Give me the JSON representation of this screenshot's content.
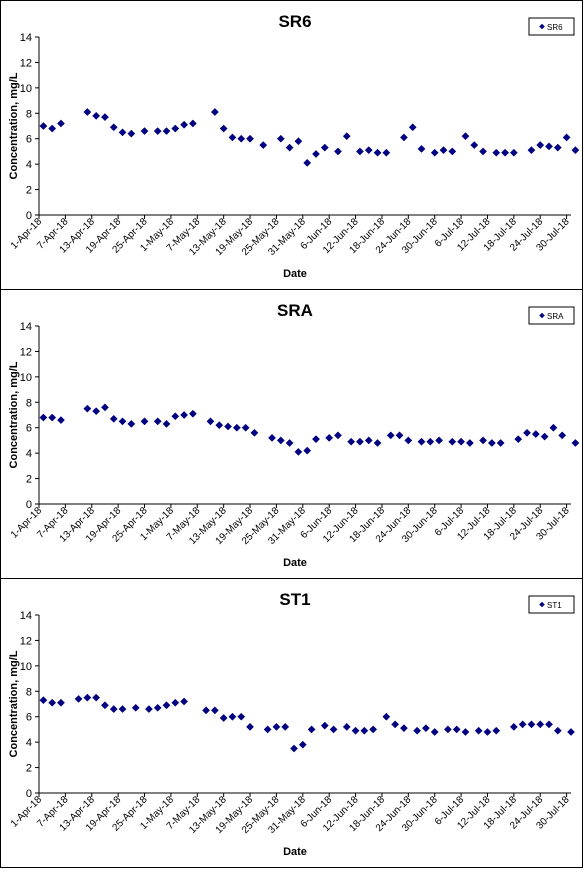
{
  "chart_data": [
    {
      "type": "scatter",
      "title": "SR6",
      "xlabel": "Date",
      "ylabel": "Concentration, mg/L",
      "ylim": [
        0,
        14
      ],
      "yticks": [
        "0",
        "2",
        "4",
        "6",
        "8",
        "10",
        "12",
        "14"
      ],
      "xticks": [
        "1-Apr-18",
        "7-Apr-18",
        "13-Apr-18",
        "19-Apr-18",
        "25-Apr-18",
        "1-May-18",
        "7-May-18",
        "13-May-18",
        "19-May-18",
        "25-May-18",
        "31-May-18",
        "6-Jun-18",
        "12-Jun-18",
        "18-Jun-18",
        "24-Jun-18",
        "30-Jun-18",
        "6-Jul-18",
        "12-Jul-18",
        "18-Jul-18",
        "24-Jul-18",
        "30-Jul-18"
      ],
      "xlim": [
        "2018-04-01",
        "2018-07-31"
      ],
      "legend": "top-right",
      "grid": false,
      "series": [
        {
          "name": "SR6",
          "color": "#000080",
          "points": [
            [
              "2018-04-02",
              7.0
            ],
            [
              "2018-04-04",
              6.8
            ],
            [
              "2018-04-06",
              7.2
            ],
            [
              "2018-04-12",
              8.1
            ],
            [
              "2018-04-14",
              7.8
            ],
            [
              "2018-04-16",
              7.7
            ],
            [
              "2018-04-18",
              6.9
            ],
            [
              "2018-04-20",
              6.5
            ],
            [
              "2018-04-22",
              6.4
            ],
            [
              "2018-04-25",
              6.6
            ],
            [
              "2018-04-28",
              6.6
            ],
            [
              "2018-04-30",
              6.6
            ],
            [
              "2018-05-02",
              6.8
            ],
            [
              "2018-05-04",
              7.1
            ],
            [
              "2018-05-06",
              7.2
            ],
            [
              "2018-05-11",
              8.1
            ],
            [
              "2018-05-13",
              6.8
            ],
            [
              "2018-05-15",
              6.1
            ],
            [
              "2018-05-17",
              6.0
            ],
            [
              "2018-05-19",
              6.0
            ],
            [
              "2018-05-22",
              5.5
            ],
            [
              "2018-05-26",
              6.0
            ],
            [
              "2018-05-28",
              5.3
            ],
            [
              "2018-05-30",
              5.8
            ],
            [
              "2018-06-01",
              4.1
            ],
            [
              "2018-06-03",
              4.8
            ],
            [
              "2018-06-05",
              5.3
            ],
            [
              "2018-06-08",
              5.0
            ],
            [
              "2018-06-10",
              6.2
            ],
            [
              "2018-06-13",
              5.0
            ],
            [
              "2018-06-15",
              5.1
            ],
            [
              "2018-06-17",
              4.9
            ],
            [
              "2018-06-19",
              4.9
            ],
            [
              "2018-06-23",
              6.1
            ],
            [
              "2018-06-25",
              6.9
            ],
            [
              "2018-06-27",
              5.2
            ],
            [
              "2018-06-30",
              4.9
            ],
            [
              "2018-07-02",
              5.1
            ],
            [
              "2018-07-04",
              5.0
            ],
            [
              "2018-07-07",
              6.2
            ],
            [
              "2018-07-09",
              5.5
            ],
            [
              "2018-07-11",
              5.0
            ],
            [
              "2018-07-14",
              4.9
            ],
            [
              "2018-07-16",
              4.9
            ],
            [
              "2018-07-18",
              4.9
            ],
            [
              "2018-07-22",
              5.1
            ],
            [
              "2018-07-24",
              5.5
            ],
            [
              "2018-07-26",
              5.4
            ],
            [
              "2018-07-28",
              5.3
            ],
            [
              "2018-07-30",
              6.1
            ],
            [
              "2018-08-01",
              5.1
            ],
            [
              "2018-08-04",
              5.0
            ]
          ]
        }
      ]
    },
    {
      "type": "scatter",
      "title": "SRA",
      "xlabel": "Date",
      "ylabel": "Concentration, mg/L",
      "ylim": [
        0,
        14
      ],
      "yticks": [
        "0",
        "2",
        "4",
        "6",
        "8",
        "10",
        "12",
        "14"
      ],
      "xticks": [
        "1-Apr-18",
        "7-Apr-18",
        "13-Apr-18",
        "19-Apr-18",
        "25-Apr-18",
        "1-May-18",
        "7-May-18",
        "13-May-18",
        "19-May-18",
        "25-May-18",
        "31-May-18",
        "6-Jun-18",
        "12-Jun-18",
        "18-Jun-18",
        "24-Jun-18",
        "30-Jun-18",
        "6-Jul-18",
        "12-Jul-18",
        "18-Jul-18",
        "24-Jul-18",
        "30-Jul-18"
      ],
      "xlim": [
        "2018-04-01",
        "2018-07-31"
      ],
      "legend": "top-right",
      "grid": false,
      "series": [
        {
          "name": "SRA",
          "color": "#000080",
          "points": [
            [
              "2018-04-02",
              6.8
            ],
            [
              "2018-04-04",
              6.8
            ],
            [
              "2018-04-06",
              6.6
            ],
            [
              "2018-04-12",
              7.5
            ],
            [
              "2018-04-14",
              7.3
            ],
            [
              "2018-04-16",
              7.6
            ],
            [
              "2018-04-18",
              6.7
            ],
            [
              "2018-04-20",
              6.5
            ],
            [
              "2018-04-22",
              6.3
            ],
            [
              "2018-04-25",
              6.5
            ],
            [
              "2018-04-28",
              6.5
            ],
            [
              "2018-04-30",
              6.3
            ],
            [
              "2018-05-02",
              6.9
            ],
            [
              "2018-05-04",
              7.0
            ],
            [
              "2018-05-06",
              7.1
            ],
            [
              "2018-05-10",
              6.5
            ],
            [
              "2018-05-12",
              6.2
            ],
            [
              "2018-05-14",
              6.1
            ],
            [
              "2018-05-16",
              6.0
            ],
            [
              "2018-05-18",
              6.0
            ],
            [
              "2018-05-20",
              5.6
            ],
            [
              "2018-05-24",
              5.2
            ],
            [
              "2018-05-26",
              5.0
            ],
            [
              "2018-05-28",
              4.8
            ],
            [
              "2018-05-30",
              4.1
            ],
            [
              "2018-06-01",
              4.2
            ],
            [
              "2018-06-03",
              5.1
            ],
            [
              "2018-06-06",
              5.2
            ],
            [
              "2018-06-08",
              5.4
            ],
            [
              "2018-06-11",
              4.9
            ],
            [
              "2018-06-13",
              4.9
            ],
            [
              "2018-06-15",
              5.0
            ],
            [
              "2018-06-17",
              4.8
            ],
            [
              "2018-06-20",
              5.4
            ],
            [
              "2018-06-22",
              5.4
            ],
            [
              "2018-06-24",
              5.0
            ],
            [
              "2018-06-27",
              4.9
            ],
            [
              "2018-06-29",
              4.9
            ],
            [
              "2018-07-01",
              5.0
            ],
            [
              "2018-07-04",
              4.9
            ],
            [
              "2018-07-06",
              4.9
            ],
            [
              "2018-07-08",
              4.8
            ],
            [
              "2018-07-11",
              5.0
            ],
            [
              "2018-07-13",
              4.8
            ],
            [
              "2018-07-15",
              4.8
            ],
            [
              "2018-07-19",
              5.1
            ],
            [
              "2018-07-21",
              5.6
            ],
            [
              "2018-07-23",
              5.5
            ],
            [
              "2018-07-25",
              5.3
            ],
            [
              "2018-07-27",
              6.0
            ],
            [
              "2018-07-29",
              5.4
            ],
            [
              "2018-08-01",
              4.8
            ]
          ]
        }
      ]
    },
    {
      "type": "scatter",
      "title": "ST1",
      "xlabel": "Date",
      "ylabel": "Concentration, mg/L",
      "ylim": [
        0,
        14
      ],
      "yticks": [
        "0",
        "2",
        "4",
        "6",
        "8",
        "10",
        "12",
        "14"
      ],
      "xticks": [
        "1-Apr-18",
        "7-Apr-18",
        "13-Apr-18",
        "19-Apr-18",
        "25-Apr-18",
        "1-May-18",
        "7-May-18",
        "13-May-18",
        "19-May-18",
        "25-May-18",
        "31-May-18",
        "6-Jun-18",
        "12-Jun-18",
        "18-Jun-18",
        "24-Jun-18",
        "30-Jun-18",
        "6-Jul-18",
        "12-Jul-18",
        "18-Jul-18",
        "24-Jul-18",
        "30-Jul-18"
      ],
      "xlim": [
        "2018-04-01",
        "2018-07-31"
      ],
      "legend": "top-right",
      "grid": false,
      "series": [
        {
          "name": "ST1",
          "color": "#000080",
          "points": [
            [
              "2018-04-02",
              7.3
            ],
            [
              "2018-04-04",
              7.1
            ],
            [
              "2018-04-06",
              7.1
            ],
            [
              "2018-04-10",
              7.4
            ],
            [
              "2018-04-12",
              7.5
            ],
            [
              "2018-04-14",
              7.5
            ],
            [
              "2018-04-16",
              6.9
            ],
            [
              "2018-04-18",
              6.6
            ],
            [
              "2018-04-20",
              6.6
            ],
            [
              "2018-04-23",
              6.7
            ],
            [
              "2018-04-26",
              6.6
            ],
            [
              "2018-04-28",
              6.7
            ],
            [
              "2018-04-30",
              6.9
            ],
            [
              "2018-05-02",
              7.1
            ],
            [
              "2018-05-04",
              7.2
            ],
            [
              "2018-05-09",
              6.5
            ],
            [
              "2018-05-11",
              6.5
            ],
            [
              "2018-05-13",
              5.9
            ],
            [
              "2018-05-15",
              6.0
            ],
            [
              "2018-05-17",
              6.0
            ],
            [
              "2018-05-19",
              5.2
            ],
            [
              "2018-05-23",
              5.0
            ],
            [
              "2018-05-25",
              5.2
            ],
            [
              "2018-05-27",
              5.2
            ],
            [
              "2018-05-29",
              3.5
            ],
            [
              "2018-05-31",
              3.8
            ],
            [
              "2018-06-02",
              5.0
            ],
            [
              "2018-06-05",
              5.3
            ],
            [
              "2018-06-07",
              5.0
            ],
            [
              "2018-06-10",
              5.2
            ],
            [
              "2018-06-12",
              4.9
            ],
            [
              "2018-06-14",
              4.9
            ],
            [
              "2018-06-16",
              5.0
            ],
            [
              "2018-06-19",
              6.0
            ],
            [
              "2018-06-21",
              5.4
            ],
            [
              "2018-06-23",
              5.1
            ],
            [
              "2018-06-26",
              4.9
            ],
            [
              "2018-06-28",
              5.1
            ],
            [
              "2018-06-30",
              4.8
            ],
            [
              "2018-07-03",
              5.0
            ],
            [
              "2018-07-05",
              5.0
            ],
            [
              "2018-07-07",
              4.8
            ],
            [
              "2018-07-10",
              4.9
            ],
            [
              "2018-07-12",
              4.8
            ],
            [
              "2018-07-14",
              4.9
            ],
            [
              "2018-07-18",
              5.2
            ],
            [
              "2018-07-20",
              5.4
            ],
            [
              "2018-07-22",
              5.4
            ],
            [
              "2018-07-24",
              5.4
            ],
            [
              "2018-07-26",
              5.4
            ],
            [
              "2018-07-28",
              4.9
            ],
            [
              "2018-07-31",
              4.8
            ]
          ]
        }
      ]
    }
  ]
}
